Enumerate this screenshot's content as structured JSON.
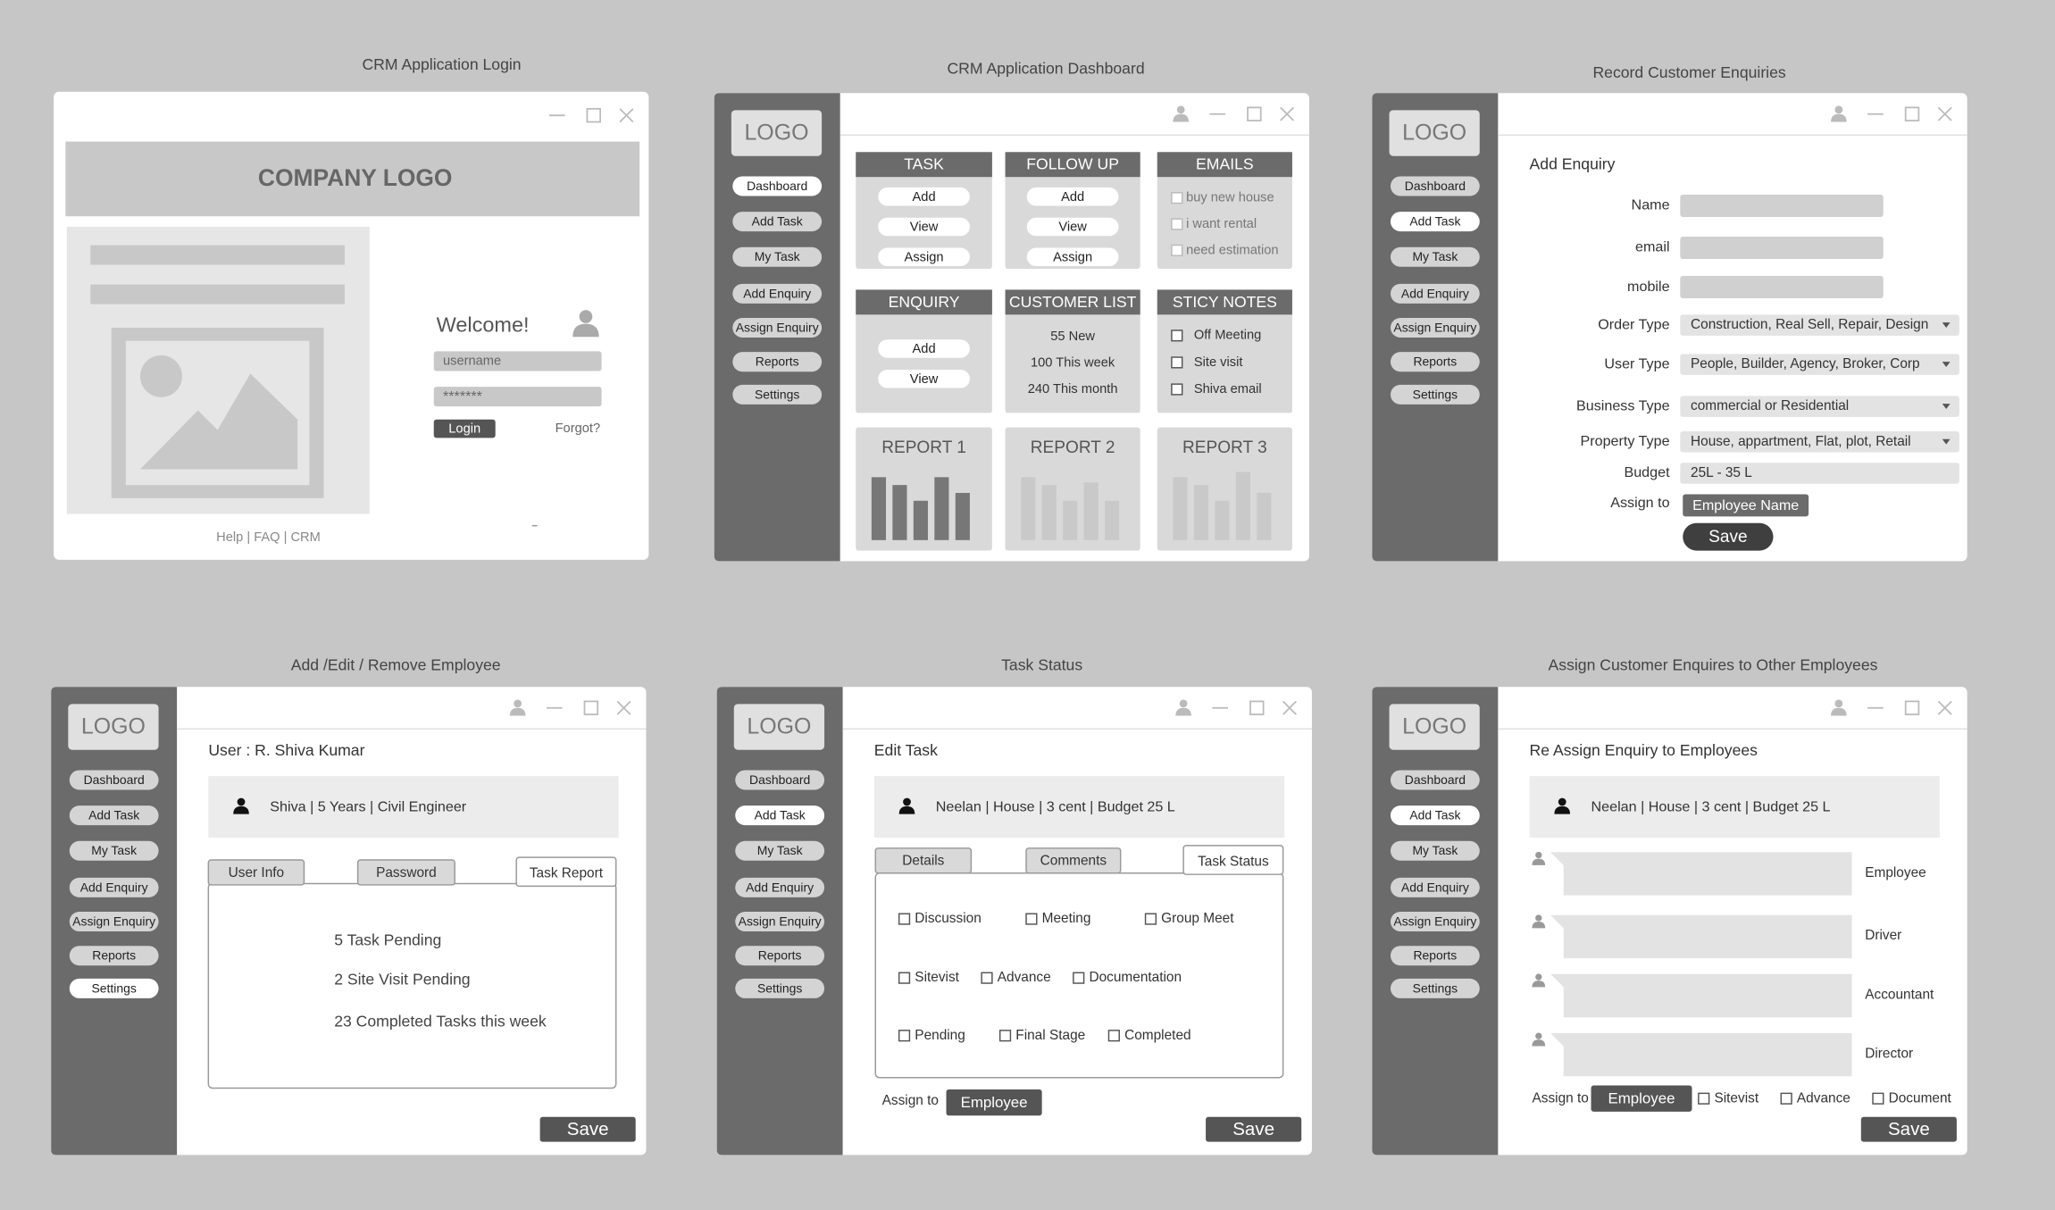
{
  "login": {
    "title": "CRM Application Login",
    "logo": "COMPANY LOGO",
    "welcome": "Welcome!",
    "username": "username",
    "password": "*******",
    "login": "Login",
    "forgot": "Forgot?",
    "footer": "Help | FAQ | CRM"
  },
  "nav": {
    "logo": "LOGO",
    "items": [
      "Dashboard",
      "Add Task",
      "My Task",
      "Add Enquiry",
      "Assign Enquiry",
      "Reports",
      "Settings"
    ]
  },
  "dashboard": {
    "title": "CRM Application Dashboard",
    "active": 0,
    "task": {
      "title": "TASK",
      "buttons": [
        "Add",
        "View",
        "Assign"
      ]
    },
    "followup": {
      "title": "FOLLOW UP",
      "buttons": [
        "Add",
        "View",
        "Assign"
      ]
    },
    "emails": {
      "title": "EMAILS",
      "items": [
        "buy new house",
        "i want rental",
        "need estimation"
      ]
    },
    "enquiry": {
      "title": "ENQUIRY",
      "buttons": [
        "Add",
        "View"
      ]
    },
    "customers": {
      "title": "CUSTOMER LIST",
      "lines": [
        "55 New",
        "100 This week",
        "240 This month"
      ]
    },
    "notes": {
      "title": "STICY NOTES",
      "items": [
        "Off Meeting",
        "Site visit",
        "Shiva email"
      ]
    },
    "reports": [
      "REPORT 1",
      "REPORT 2",
      "REPORT 3"
    ]
  },
  "enquiry": {
    "title": "Record Customer Enquiries",
    "active": 1,
    "heading": "Add Enquiry",
    "inputs": [
      "Name",
      "email",
      "mobile"
    ],
    "selects": [
      {
        "label": "Order Type",
        "value": "Construction, Real Sell, Repair, Design"
      },
      {
        "label": "User Type",
        "value": "People, Builder, Agency, Broker, Corp"
      },
      {
        "label": "Business Type",
        "value": "commercial or Residential"
      },
      {
        "label": "Property Type",
        "value": "House, appartment, Flat, plot, Retail"
      }
    ],
    "budget": {
      "label": "Budget",
      "value": "25L - 35 L"
    },
    "assign": {
      "label": "Assign to",
      "value": "Employee Name"
    },
    "save": "Save"
  },
  "employee": {
    "title": "Add /Edit / Remove Employee",
    "active": 6,
    "user": "User : R. Shiva Kumar",
    "card": "Shiva  | 5 Years | Civil Engineer",
    "tabs": [
      "User Info",
      "Password",
      "Task Report"
    ],
    "lines": [
      "5 Task Pending",
      "2 Site Visit Pending",
      "23 Completed Tasks this week"
    ],
    "save": "Save"
  },
  "task": {
    "title": "Task Status",
    "active": 1,
    "heading": "Edit Task",
    "card": "Neelan | House | 3 cent | Budget 25 L",
    "tabs": [
      "Details",
      "Comments",
      "Task Status"
    ],
    "checks": [
      [
        "Discussion",
        "Meeting",
        "Group Meet"
      ],
      [
        "Sitevist",
        "Advance",
        "Documentation"
      ],
      [
        "Pending",
        "Final Stage",
        "Completed"
      ]
    ],
    "assign": {
      "label": "Assign to",
      "value": "Employee"
    },
    "save": "Save"
  },
  "assign": {
    "title": "Assign Customer Enquires to Other Employees",
    "active": 1,
    "heading": "Re Assign Enquiry to Employees",
    "card": "Neelan | House | 3 cent | Budget 25 L",
    "roles": [
      "Employee",
      "Driver",
      "Accountant",
      "Director"
    ],
    "assign": {
      "label": "Assign to",
      "value": "Employee"
    },
    "checks": [
      "Sitevist",
      "Advance",
      "Document"
    ],
    "save": "Save"
  }
}
